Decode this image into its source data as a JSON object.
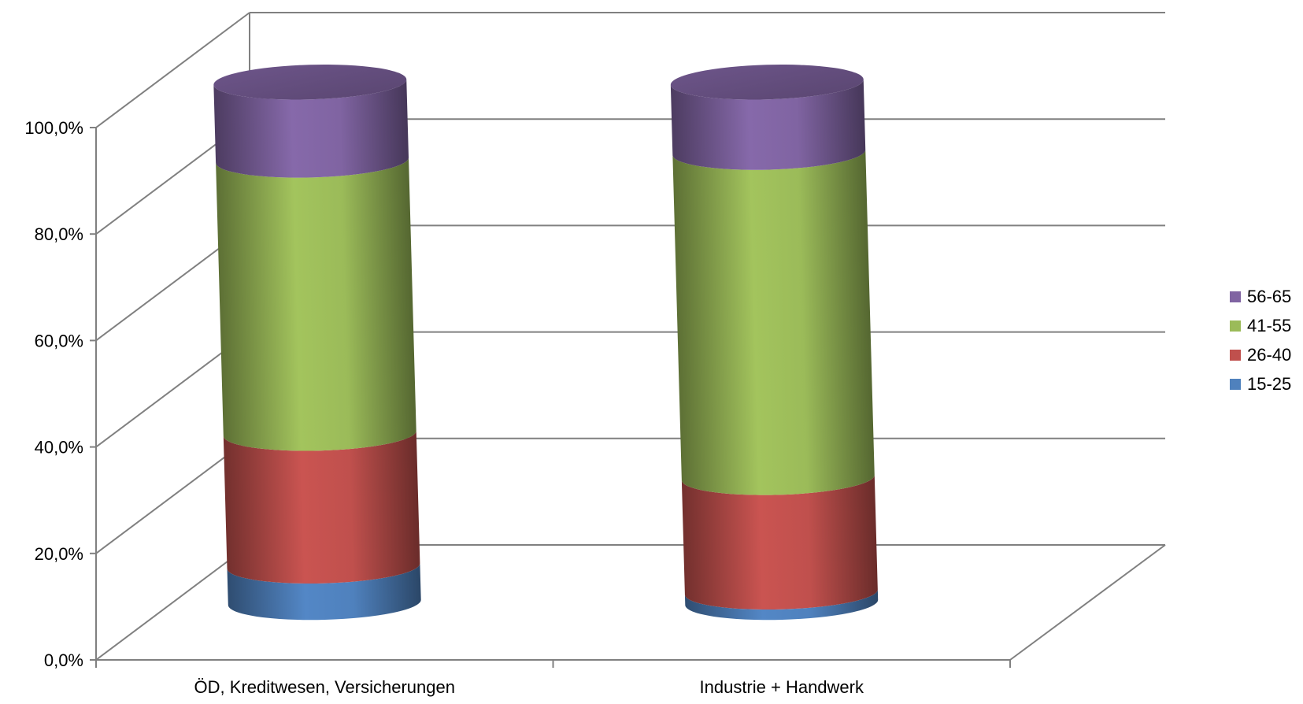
{
  "chart_data": {
    "type": "bar",
    "stacked": true,
    "style": "3d-cylinder",
    "categories": [
      "ÖD, Kreditwesen, Versicherungen",
      "Industrie + Handwerk"
    ],
    "series": [
      {
        "name": "15-25",
        "color": "#4f81bd",
        "values": [
          7.0,
          2.0
        ]
      },
      {
        "name": "26-40",
        "color": "#c0504d",
        "values": [
          25.5,
          22.0
        ]
      },
      {
        "name": "41-55",
        "color": "#9bbb59",
        "values": [
          52.5,
          62.5
        ]
      },
      {
        "name": "56-65",
        "color": "#8064a2",
        "values": [
          15.0,
          13.5
        ]
      }
    ],
    "ylim": [
      0,
      100
    ],
    "yticks": [
      "0,0%",
      "20,0%",
      "40,0%",
      "60,0%",
      "80,0%",
      "100,0%"
    ],
    "grid": true,
    "legend": "right"
  }
}
